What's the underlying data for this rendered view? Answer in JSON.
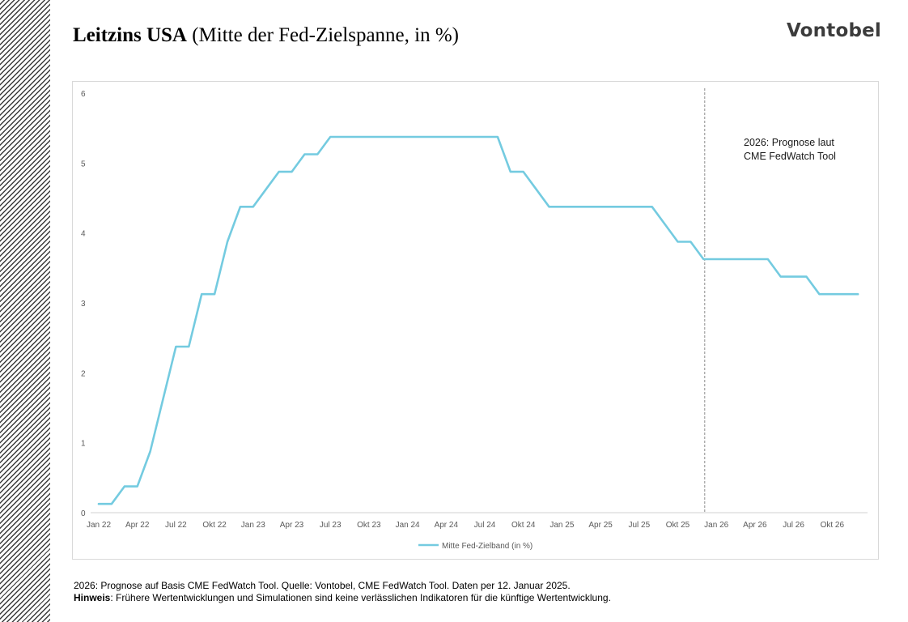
{
  "header": {
    "title_bold": "Leitzins USA",
    "title_rest": "(Mitte der Fed-Zielspanne, in %)",
    "logo": "Vontobel"
  },
  "chart_data": {
    "type": "line",
    "title": "Leitzins USA (Mitte der Fed-Zielspanne, in %)",
    "x_tick_labels": [
      "Jan 22",
      "Apr 22",
      "Jul 22",
      "Okt 22",
      "Jan 23",
      "Apr 23",
      "Jul 23",
      "Okt 23",
      "Jan 24",
      "Apr 24",
      "Jul 24",
      "Okt 24",
      "Jan 25",
      "Apr 25",
      "Jul 25",
      "Okt 25",
      "Jan 26",
      "Apr 26",
      "Jul 26",
      "Okt 26"
    ],
    "y_tick_labels": [
      "0",
      "1",
      "2",
      "3",
      "4",
      "5",
      "6"
    ],
    "ylim": [
      0,
      6
    ],
    "grid": false,
    "legend_position": "bottom",
    "series": [
      {
        "name": "Mitte Fed-Zielband (in %)",
        "color": "#74cbe0",
        "x": [
          "2022-01",
          "2022-02",
          "2022-03",
          "2022-04",
          "2022-05",
          "2022-06",
          "2022-07",
          "2022-08",
          "2022-09",
          "2022-10",
          "2022-11",
          "2022-12",
          "2023-01",
          "2023-02",
          "2023-03",
          "2023-04",
          "2023-05",
          "2023-06",
          "2023-07",
          "2023-08",
          "2023-09",
          "2023-10",
          "2023-11",
          "2023-12",
          "2024-01",
          "2024-02",
          "2024-03",
          "2024-04",
          "2024-05",
          "2024-06",
          "2024-07",
          "2024-08",
          "2024-09",
          "2024-10",
          "2024-11",
          "2024-12",
          "2025-01",
          "2025-02",
          "2025-03",
          "2025-04",
          "2025-05",
          "2025-06",
          "2025-07",
          "2025-08",
          "2025-09",
          "2025-10",
          "2025-11",
          "2025-12",
          "2026-01",
          "2026-02",
          "2026-03",
          "2026-04",
          "2026-05",
          "2026-06",
          "2026-07",
          "2026-08",
          "2026-09",
          "2026-10",
          "2026-11",
          "2026-12"
        ],
        "values": [
          0.125,
          0.125,
          0.375,
          0.375,
          0.875,
          1.625,
          2.375,
          2.375,
          3.125,
          3.125,
          3.875,
          4.375,
          4.375,
          4.625,
          4.875,
          4.875,
          5.125,
          5.125,
          5.375,
          5.375,
          5.375,
          5.375,
          5.375,
          5.375,
          5.375,
          5.375,
          5.375,
          5.375,
          5.375,
          5.375,
          5.375,
          5.375,
          4.875,
          4.875,
          4.625,
          4.375,
          4.375,
          4.375,
          4.375,
          4.375,
          4.375,
          4.375,
          4.375,
          4.375,
          4.125,
          3.875,
          3.875,
          3.625,
          3.625,
          3.625,
          3.625,
          3.625,
          3.625,
          3.375,
          3.375,
          3.375,
          3.125,
          3.125,
          3.125,
          3.125
        ]
      }
    ],
    "forecast_divider_x": "2025-12",
    "annotation": [
      "2026: Prognose laut",
      "CME FedWatch Tool"
    ],
    "colors": {
      "line": "#74cbe0",
      "divider": "#8c8c8c",
      "axis": "#d0d0d0",
      "tick_text": "#595959"
    }
  },
  "footnote": {
    "line1": "2026: Prognose auf Basis CME FedWatch Tool. Quelle: Vontobel, CME FedWatch Tool. Daten per 12. Januar 2025.",
    "line2_bold": "Hinweis",
    "line2_rest": ": Frühere Wertentwicklungen und Simulationen sind keine verlässlichen Indikatoren für die künftige Wertentwicklung."
  }
}
